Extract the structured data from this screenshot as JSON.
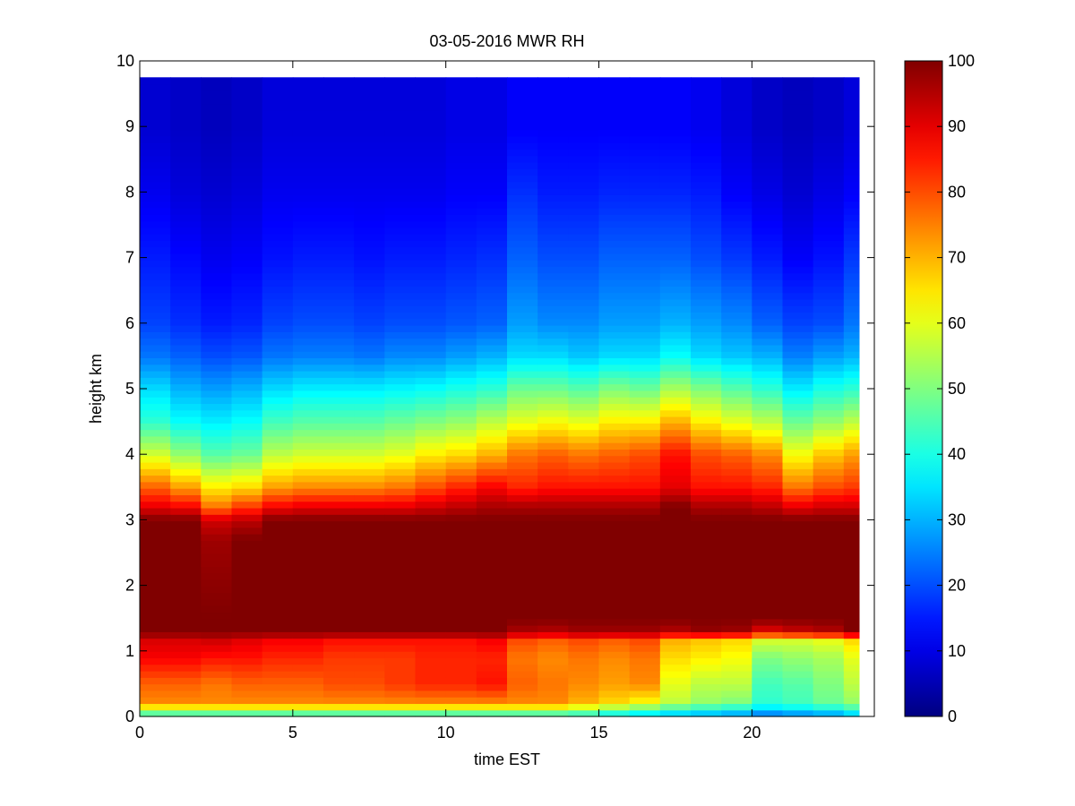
{
  "chart_data": {
    "type": "heatmap",
    "title": "03-05-2016 MWR RH",
    "xlabel": "time EST",
    "ylabel": "height km",
    "xlim": [
      0,
      24
    ],
    "ylim": [
      0,
      10
    ],
    "x_ticks": [
      0,
      5,
      10,
      15,
      20
    ],
    "y_ticks": [
      0,
      1,
      2,
      3,
      4,
      5,
      6,
      7,
      8,
      9,
      10
    ],
    "colorbar": {
      "colormap": "jet",
      "range": [
        0,
        100
      ],
      "ticks": [
        0,
        10,
        20,
        30,
        40,
        50,
        60,
        70,
        80,
        90,
        100
      ]
    },
    "data_extent": {
      "x": [
        0,
        23.5
      ],
      "y": [
        0,
        9.75
      ]
    },
    "time_hours": [
      0,
      1,
      2,
      3,
      4,
      5,
      6,
      7,
      8,
      9,
      10,
      11,
      12,
      13,
      14,
      15,
      16,
      17,
      18,
      19,
      20,
      21,
      22,
      23
    ],
    "profile_heights_km": [
      0,
      0.1,
      0.2,
      0.5,
      0.9,
      1.15,
      1.3,
      1.5,
      2.7,
      3.0,
      3.2,
      3.5,
      4.0,
      4.5,
      5.0,
      5.5,
      6.0,
      7.0,
      8.0,
      9.0,
      9.75
    ],
    "rh_percent": [
      [
        38,
        56,
        74,
        78,
        88,
        91,
        100,
        100,
        100,
        100,
        90,
        78,
        58,
        42,
        34,
        24,
        19,
        15,
        11,
        8,
        8
      ],
      [
        38,
        56,
        74,
        78,
        88,
        91,
        100,
        100,
        100,
        100,
        88,
        72,
        52,
        38,
        30,
        22,
        17,
        13,
        9,
        7,
        7
      ],
      [
        38,
        56,
        74,
        76,
        86,
        92,
        100,
        100,
        97,
        92,
        76,
        64,
        46,
        36,
        28,
        20,
        15,
        11,
        8,
        6,
        6
      ],
      [
        38,
        56,
        74,
        78,
        86,
        90,
        100,
        100,
        100,
        94,
        82,
        66,
        48,
        38,
        30,
        21,
        16,
        12,
        9,
        7,
        7
      ],
      [
        38,
        56,
        74,
        78,
        84,
        88,
        100,
        100,
        100,
        100,
        88,
        72,
        56,
        44,
        34,
        24,
        19,
        14,
        11,
        9,
        9
      ],
      [
        38,
        56,
        74,
        78,
        84,
        88,
        100,
        100,
        100,
        100,
        90,
        74,
        58,
        46,
        36,
        25,
        20,
        15,
        11,
        9,
        9
      ],
      [
        38,
        56,
        74,
        80,
        82,
        86,
        100,
        100,
        100,
        100,
        90,
        74,
        58,
        46,
        36,
        25,
        20,
        15,
        11,
        9,
        9
      ],
      [
        38,
        56,
        74,
        80,
        82,
        86,
        100,
        100,
        100,
        100,
        90,
        74,
        58,
        46,
        36,
        24,
        19,
        14,
        11,
        9,
        9
      ],
      [
        38,
        56,
        74,
        82,
        82,
        86,
        100,
        100,
        100,
        100,
        90,
        76,
        60,
        48,
        37,
        26,
        20,
        15,
        11,
        9,
        9
      ],
      [
        38,
        56,
        74,
        84,
        84,
        86,
        100,
        100,
        100,
        100,
        92,
        80,
        64,
        50,
        38,
        26,
        20,
        15,
        11,
        9,
        9
      ],
      [
        38,
        56,
        74,
        84,
        84,
        86,
        100,
        100,
        100,
        100,
        94,
        84,
        66,
        52,
        40,
        28,
        21,
        16,
        12,
        10,
        10
      ],
      [
        38,
        56,
        74,
        86,
        84,
        88,
        100,
        100,
        100,
        100,
        96,
        88,
        70,
        56,
        42,
        30,
        22,
        17,
        12,
        10,
        10
      ],
      [
        38,
        56,
        74,
        78,
        76,
        80,
        96,
        100,
        100,
        100,
        96,
        84,
        76,
        60,
        48,
        34,
        28,
        22,
        17,
        12,
        12
      ],
      [
        38,
        56,
        74,
        76,
        74,
        78,
        95,
        100,
        100,
        100,
        96,
        86,
        78,
        62,
        48,
        34,
        26,
        20,
        15,
        12,
        12
      ],
      [
        38,
        52,
        70,
        74,
        76,
        80,
        97,
        100,
        100,
        100,
        96,
        86,
        76,
        60,
        46,
        32,
        26,
        20,
        15,
        12,
        12
      ],
      [
        34,
        48,
        66,
        72,
        74,
        78,
        97,
        100,
        100,
        100,
        96,
        86,
        78,
        64,
        50,
        34,
        28,
        22,
        16,
        12,
        12
      ],
      [
        32,
        44,
        62,
        74,
        76,
        80,
        97,
        100,
        100,
        100,
        96,
        86,
        80,
        64,
        48,
        34,
        28,
        22,
        16,
        12,
        12
      ],
      [
        30,
        40,
        56,
        60,
        66,
        70,
        95,
        100,
        100,
        100,
        100,
        90,
        86,
        70,
        54,
        38,
        30,
        22,
        16,
        12,
        12
      ],
      [
        28,
        38,
        52,
        56,
        64,
        68,
        98,
        100,
        100,
        100,
        96,
        86,
        80,
        64,
        50,
        34,
        28,
        20,
        15,
        11,
        11
      ],
      [
        26,
        36,
        50,
        56,
        62,
        66,
        97,
        100,
        100,
        100,
        96,
        86,
        78,
        60,
        46,
        32,
        26,
        18,
        12,
        9,
        9
      ],
      [
        22,
        32,
        42,
        44,
        50,
        58,
        90,
        100,
        100,
        100,
        94,
        84,
        74,
        56,
        42,
        30,
        22,
        15,
        10,
        7,
        7
      ],
      [
        24,
        34,
        44,
        46,
        52,
        58,
        93,
        100,
        100,
        100,
        90,
        76,
        62,
        48,
        36,
        25,
        19,
        12,
        8,
        6,
        6
      ],
      [
        26,
        36,
        48,
        50,
        54,
        60,
        95,
        100,
        100,
        100,
        92,
        80,
        68,
        52,
        40,
        28,
        20,
        14,
        10,
        7,
        7
      ],
      [
        30,
        40,
        52,
        56,
        60,
        66,
        100,
        100,
        100,
        100,
        92,
        82,
        72,
        56,
        42,
        30,
        24,
        18,
        12,
        9,
        9
      ]
    ]
  }
}
